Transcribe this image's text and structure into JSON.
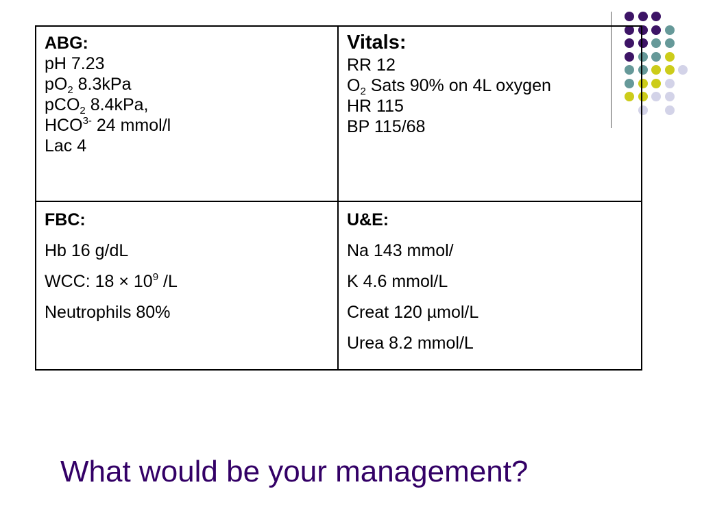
{
  "colors": {
    "purple": "#3d1466",
    "teal": "#669999",
    "yellow": "#cccc1a",
    "lavender": "#d3d3e8",
    "question": "#330066"
  },
  "abg": {
    "heading": "ABG:",
    "ph": "pH 7.23",
    "po2_pre": "pO",
    "po2_sub": "2",
    "po2_post": " 8.3kPa",
    "pco2_pre": "pCO",
    "pco2_sub": "2",
    "pco2_post": " 8.4kPa,",
    "hco3_pre": "HCO",
    "hco3_sup": "3-",
    "hco3_post": " 24 mmol/l",
    "lac": "Lac 4"
  },
  "vitals": {
    "heading": "Vitals:",
    "rr": "RR 12",
    "o2_pre": "O",
    "o2_sub": "2",
    "o2_post": " Sats 90% on 4L oxygen",
    "hr": "HR 115",
    "bp": "BP 115/68"
  },
  "fbc": {
    "heading": "FBC:",
    "hb": "Hb 16 g/dL",
    "wcc_pre": "WCC: 18 × 10",
    "wcc_sup": "9",
    "wcc_post": " /L",
    "neutrophils": "Neutrophils 80%"
  },
  "ue": {
    "heading": "U&E:",
    "na": "Na 143 mmol/",
    "k": "K 4.6 mmol/L",
    "creat": "Creat 120 µmol/L",
    "urea": "Urea 8.2 mmol/L"
  },
  "question": "What would be your management?"
}
